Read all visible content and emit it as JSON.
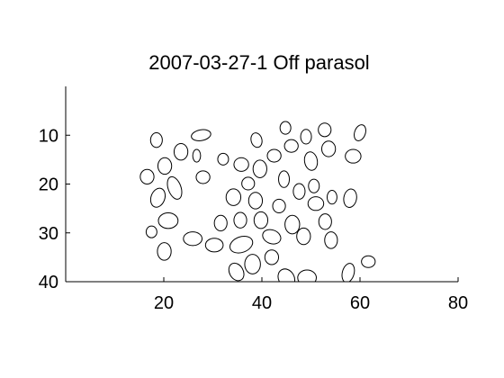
{
  "chart_data": {
    "type": "scatter",
    "title": "2007-03-27-1 Off parasol",
    "xlabel": "",
    "ylabel": "",
    "xlim": [
      0,
      80
    ],
    "ylim": [
      0,
      40
    ],
    "y_reversed": true,
    "x_ticks": [
      20,
      40,
      60,
      80
    ],
    "x_tick_labels": [
      "20",
      "40",
      "60",
      "80"
    ],
    "y_ticks": [
      10,
      20,
      30,
      40
    ],
    "y_tick_labels": [
      "10",
      "20",
      "30",
      "40"
    ],
    "grid": false,
    "legend": "none",
    "mark": "ellipse-outline",
    "color": "#000000",
    "ellipses": [
      {
        "x": 44.8,
        "y": 8.5,
        "rx": 1.1,
        "ry": 1.3,
        "angle": 0
      },
      {
        "x": 52.8,
        "y": 8.9,
        "rx": 1.3,
        "ry": 1.4,
        "angle": 0
      },
      {
        "x": 60.0,
        "y": 9.5,
        "rx": 1.1,
        "ry": 1.7,
        "angle": 20
      },
      {
        "x": 18.5,
        "y": 11.0,
        "rx": 1.2,
        "ry": 1.5,
        "angle": 0
      },
      {
        "x": 27.6,
        "y": 10.0,
        "rx": 2.0,
        "ry": 1.1,
        "angle": -10
      },
      {
        "x": 38.9,
        "y": 11.0,
        "rx": 1.1,
        "ry": 1.5,
        "angle": -15
      },
      {
        "x": 49.0,
        "y": 10.3,
        "rx": 1.1,
        "ry": 1.5,
        "angle": 0
      },
      {
        "x": 46.0,
        "y": 12.2,
        "rx": 1.4,
        "ry": 1.3,
        "angle": 0
      },
      {
        "x": 23.5,
        "y": 13.4,
        "rx": 1.4,
        "ry": 1.7,
        "angle": 0
      },
      {
        "x": 53.6,
        "y": 12.8,
        "rx": 1.4,
        "ry": 1.6,
        "angle": 0
      },
      {
        "x": 26.7,
        "y": 14.2,
        "rx": 0.8,
        "ry": 1.3,
        "angle": 0
      },
      {
        "x": 42.5,
        "y": 14.2,
        "rx": 1.4,
        "ry": 1.3,
        "angle": 0
      },
      {
        "x": 58.6,
        "y": 14.3,
        "rx": 1.6,
        "ry": 1.4,
        "angle": 0
      },
      {
        "x": 32.1,
        "y": 14.9,
        "rx": 1.1,
        "ry": 1.2,
        "angle": 0
      },
      {
        "x": 50.0,
        "y": 15.3,
        "rx": 1.3,
        "ry": 1.9,
        "angle": -10
      },
      {
        "x": 20.2,
        "y": 16.3,
        "rx": 1.4,
        "ry": 1.7,
        "angle": 0
      },
      {
        "x": 35.8,
        "y": 16.0,
        "rx": 1.5,
        "ry": 1.4,
        "angle": 0
      },
      {
        "x": 39.6,
        "y": 16.9,
        "rx": 1.4,
        "ry": 1.8,
        "angle": 0
      },
      {
        "x": 16.6,
        "y": 18.5,
        "rx": 1.4,
        "ry": 1.5,
        "angle": 0
      },
      {
        "x": 28.0,
        "y": 18.6,
        "rx": 1.4,
        "ry": 1.3,
        "angle": 0
      },
      {
        "x": 44.5,
        "y": 19.0,
        "rx": 1.1,
        "ry": 1.7,
        "angle": 0
      },
      {
        "x": 37.2,
        "y": 19.9,
        "rx": 1.3,
        "ry": 1.3,
        "angle": 0
      },
      {
        "x": 50.6,
        "y": 20.4,
        "rx": 1.1,
        "ry": 1.4,
        "angle": 0
      },
      {
        "x": 22.2,
        "y": 20.8,
        "rx": 1.3,
        "ry": 2.4,
        "angle": -20
      },
      {
        "x": 47.6,
        "y": 21.5,
        "rx": 1.2,
        "ry": 1.6,
        "angle": 0
      },
      {
        "x": 18.8,
        "y": 22.8,
        "rx": 1.4,
        "ry": 2.0,
        "angle": 20
      },
      {
        "x": 34.2,
        "y": 22.7,
        "rx": 1.5,
        "ry": 1.7,
        "angle": 0
      },
      {
        "x": 54.3,
        "y": 22.7,
        "rx": 1.0,
        "ry": 1.4,
        "angle": 0
      },
      {
        "x": 58.0,
        "y": 22.9,
        "rx": 1.3,
        "ry": 1.9,
        "angle": 10
      },
      {
        "x": 38.7,
        "y": 23.4,
        "rx": 1.4,
        "ry": 1.7,
        "angle": 0
      },
      {
        "x": 51.0,
        "y": 24.0,
        "rx": 1.6,
        "ry": 1.4,
        "angle": 0
      },
      {
        "x": 43.5,
        "y": 24.5,
        "rx": 1.3,
        "ry": 1.4,
        "angle": 0
      },
      {
        "x": 20.9,
        "y": 27.5,
        "rx": 2.0,
        "ry": 1.6,
        "angle": 0
      },
      {
        "x": 31.6,
        "y": 28.0,
        "rx": 1.3,
        "ry": 1.6,
        "angle": 0
      },
      {
        "x": 35.6,
        "y": 27.4,
        "rx": 1.3,
        "ry": 1.6,
        "angle": 0
      },
      {
        "x": 39.8,
        "y": 27.4,
        "rx": 1.4,
        "ry": 1.7,
        "angle": 0
      },
      {
        "x": 52.9,
        "y": 27.7,
        "rx": 1.3,
        "ry": 1.6,
        "angle": 0
      },
      {
        "x": 46.2,
        "y": 28.3,
        "rx": 1.5,
        "ry": 1.9,
        "angle": 0
      },
      {
        "x": 17.5,
        "y": 29.8,
        "rx": 1.1,
        "ry": 1.2,
        "angle": 0
      },
      {
        "x": 48.5,
        "y": 30.7,
        "rx": 1.4,
        "ry": 1.7,
        "angle": 0
      },
      {
        "x": 25.9,
        "y": 31.2,
        "rx": 1.9,
        "ry": 1.4,
        "angle": 0
      },
      {
        "x": 42.0,
        "y": 30.8,
        "rx": 1.9,
        "ry": 1.4,
        "angle": 20
      },
      {
        "x": 54.1,
        "y": 31.5,
        "rx": 1.3,
        "ry": 1.7,
        "angle": 0
      },
      {
        "x": 30.3,
        "y": 32.5,
        "rx": 1.8,
        "ry": 1.4,
        "angle": 0
      },
      {
        "x": 35.8,
        "y": 32.4,
        "rx": 2.4,
        "ry": 1.6,
        "angle": -20
      },
      {
        "x": 20.1,
        "y": 33.8,
        "rx": 1.4,
        "ry": 1.8,
        "angle": 0
      },
      {
        "x": 42.0,
        "y": 35.0,
        "rx": 1.4,
        "ry": 1.5,
        "angle": 0
      },
      {
        "x": 38.1,
        "y": 36.4,
        "rx": 1.6,
        "ry": 2.0,
        "angle": 0
      },
      {
        "x": 61.7,
        "y": 35.9,
        "rx": 1.4,
        "ry": 1.2,
        "angle": 0
      },
      {
        "x": 34.8,
        "y": 38.0,
        "rx": 1.4,
        "ry": 1.9,
        "angle": -30
      },
      {
        "x": 57.6,
        "y": 38.2,
        "rx": 1.2,
        "ry": 2.0,
        "angle": 15
      },
      {
        "x": 45.0,
        "y": 39.3,
        "rx": 1.6,
        "ry": 2.0,
        "angle": -30
      },
      {
        "x": 49.2,
        "y": 39.2,
        "rx": 1.9,
        "ry": 1.6,
        "angle": 0
      }
    ]
  }
}
